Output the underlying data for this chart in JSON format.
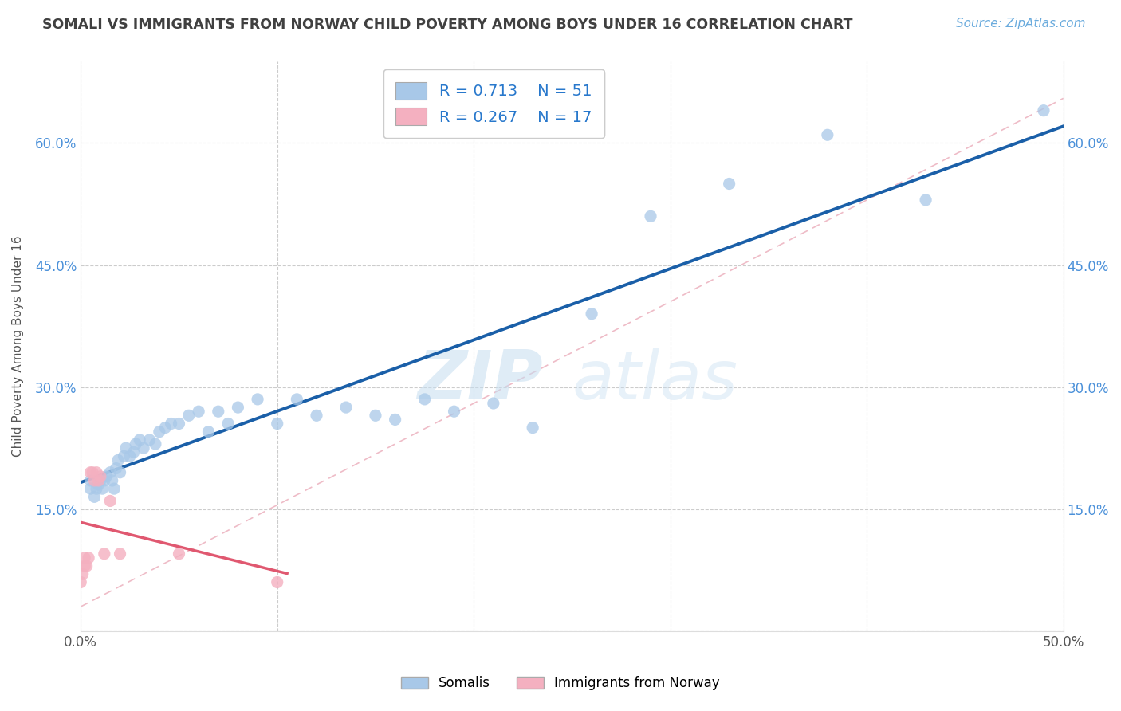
{
  "title": "SOMALI VS IMMIGRANTS FROM NORWAY CHILD POVERTY AMONG BOYS UNDER 16 CORRELATION CHART",
  "source": "Source: ZipAtlas.com",
  "ylabel": "Child Poverty Among Boys Under 16",
  "xlim": [
    0.0,
    0.5
  ],
  "ylim": [
    0.0,
    0.7
  ],
  "blue_color": "#a8c8e8",
  "pink_color": "#f4b0c0",
  "blue_line_color": "#1a5fa8",
  "pink_line_color": "#e05870",
  "title_color": "#404040",
  "source_color": "#6aabdd",
  "watermark_zip": "ZIP",
  "watermark_atlas": "atlas",
  "legend_R1": "0.713",
  "legend_N1": "51",
  "legend_R2": "0.267",
  "legend_N2": "17",
  "legend_label1": "Somalis",
  "legend_label2": "Immigrants from Norway",
  "somali_x": [
    0.005,
    0.005,
    0.007,
    0.008,
    0.009,
    0.01,
    0.011,
    0.012,
    0.013,
    0.015,
    0.016,
    0.017,
    0.018,
    0.019,
    0.02,
    0.022,
    0.023,
    0.025,
    0.027,
    0.028,
    0.03,
    0.032,
    0.035,
    0.038,
    0.04,
    0.043,
    0.046,
    0.05,
    0.055,
    0.06,
    0.065,
    0.07,
    0.075,
    0.08,
    0.09,
    0.1,
    0.11,
    0.12,
    0.135,
    0.15,
    0.16,
    0.175,
    0.19,
    0.21,
    0.23,
    0.26,
    0.29,
    0.33,
    0.38,
    0.43,
    0.49
  ],
  "somali_y": [
    0.175,
    0.185,
    0.165,
    0.175,
    0.18,
    0.185,
    0.175,
    0.185,
    0.19,
    0.195,
    0.185,
    0.175,
    0.2,
    0.21,
    0.195,
    0.215,
    0.225,
    0.215,
    0.22,
    0.23,
    0.235,
    0.225,
    0.235,
    0.23,
    0.245,
    0.25,
    0.255,
    0.255,
    0.265,
    0.27,
    0.245,
    0.27,
    0.255,
    0.275,
    0.285,
    0.255,
    0.285,
    0.265,
    0.275,
    0.265,
    0.26,
    0.285,
    0.27,
    0.28,
    0.25,
    0.39,
    0.51,
    0.55,
    0.61,
    0.53,
    0.64
  ],
  "norway_x": [
    0.0,
    0.001,
    0.002,
    0.002,
    0.003,
    0.004,
    0.005,
    0.006,
    0.007,
    0.008,
    0.009,
    0.01,
    0.012,
    0.015,
    0.02,
    0.05,
    0.1
  ],
  "norway_y": [
    0.06,
    0.07,
    0.08,
    0.09,
    0.08,
    0.09,
    0.195,
    0.195,
    0.185,
    0.195,
    0.185,
    0.19,
    0.095,
    0.16,
    0.095,
    0.095,
    0.06
  ]
}
